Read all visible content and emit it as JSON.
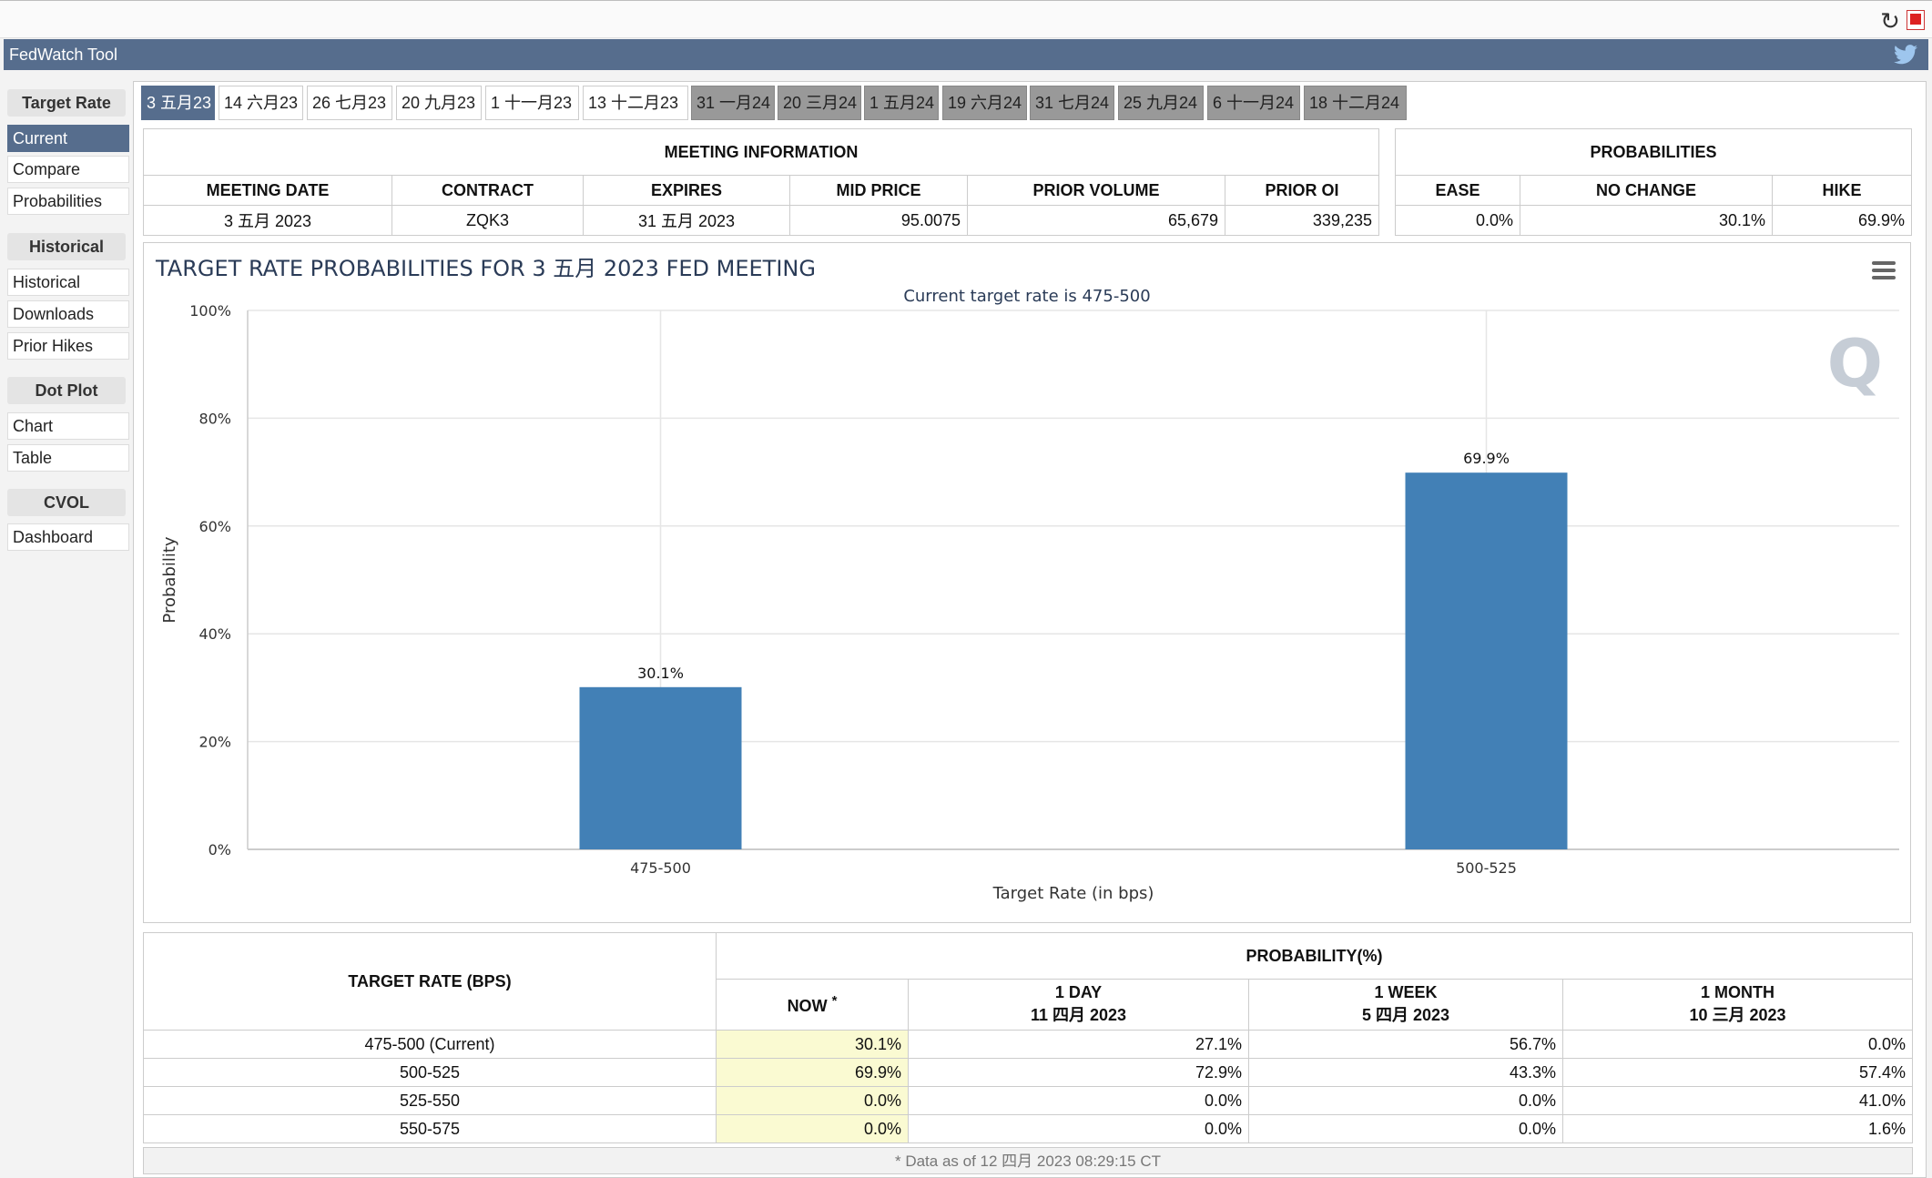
{
  "app": {
    "title": "FedWatch Tool"
  },
  "sidebar": {
    "sections": [
      {
        "heading": "Target Rate",
        "items": [
          "Current",
          "Compare",
          "Probabilities"
        ]
      },
      {
        "heading": "Historical",
        "items": [
          "Historical",
          "Downloads",
          "Prior Hikes"
        ]
      },
      {
        "heading": "Dot Plot",
        "items": [
          "Chart",
          "Table"
        ]
      },
      {
        "heading": "CVOL",
        "items": [
          "Dashboard"
        ]
      }
    ],
    "active_item": "Current"
  },
  "tabs": [
    "3 五月23",
    "14 六月23",
    "26 七月23",
    "20 九月23",
    "1 十一月23",
    "13 十二月23",
    "31 一月24",
    "20 三月24",
    "1 五月24",
    "19 六月24",
    "31 七月24",
    "25 九月24",
    "6 十一月24",
    "18 十二月24"
  ],
  "meeting_info": {
    "caption": "MEETING INFORMATION",
    "headers": [
      "MEETING DATE",
      "CONTRACT",
      "EXPIRES",
      "MID PRICE",
      "PRIOR VOLUME",
      "PRIOR OI"
    ],
    "row": [
      "3 五月 2023",
      "ZQK3",
      "31 五月 2023",
      "95.0075",
      "65,679",
      "339,235"
    ]
  },
  "probabilities": {
    "caption": "PROBABILITIES",
    "headers": [
      "EASE",
      "NO CHANGE",
      "HIKE"
    ],
    "row": [
      "0.0%",
      "30.1%",
      "69.9%"
    ]
  },
  "chart_data": {
    "type": "bar",
    "title": "TARGET RATE PROBABILITIES FOR 3 五月 2023 FED MEETING",
    "subtitle": "Current target rate is 475-500",
    "categories": [
      "475-500",
      "500-525"
    ],
    "values": [
      30.1,
      69.9
    ],
    "data_labels": [
      "30.1%",
      "69.9%"
    ],
    "xlabel": "Target Rate (in bps)",
    "ylabel": "Probability",
    "ylim": [
      0,
      100
    ],
    "yticks": [
      "0%",
      "20%",
      "40%",
      "60%",
      "80%",
      "100%"
    ],
    "bar_color": "#4280b6",
    "grid": true
  },
  "history": {
    "col_target": "TARGET RATE (BPS)",
    "col_prob": "PROBABILITY(%)",
    "now_label": "NOW",
    "now_mark": "*",
    "periods": [
      {
        "label": "1 DAY",
        "date": "11 四月 2023"
      },
      {
        "label": "1 WEEK",
        "date": "5 四月 2023"
      },
      {
        "label": "1 MONTH",
        "date": "10 三月 2023"
      }
    ],
    "rows": [
      {
        "rate": "475-500 (Current)",
        "now": "30.1%",
        "d1": "27.1%",
        "w1": "56.7%",
        "m1": "0.0%"
      },
      {
        "rate": "500-525",
        "now": "69.9%",
        "d1": "72.9%",
        "w1": "43.3%",
        "m1": "57.4%"
      },
      {
        "rate": "525-550",
        "now": "0.0%",
        "d1": "0.0%",
        "w1": "0.0%",
        "m1": "41.0%"
      },
      {
        "rate": "550-575",
        "now": "0.0%",
        "d1": "0.0%",
        "w1": "0.0%",
        "m1": "1.6%"
      }
    ],
    "footnote": "* Data as of 12 四月 2023 08:29:15 CT"
  },
  "icons": {
    "reload": "reload-icon",
    "pdf": "pdf-icon",
    "twitter": "twitter-icon",
    "menu": "menu-icon"
  }
}
